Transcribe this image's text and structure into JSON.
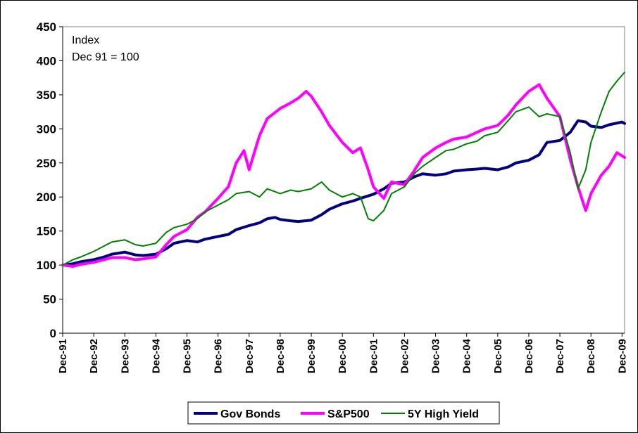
{
  "chart_data": {
    "type": "line",
    "title": "",
    "xlabel": "",
    "ylabel": "",
    "annotation": [
      "Index",
      "Dec 91 = 100"
    ],
    "ylim": [
      0,
      450
    ],
    "yticks": [
      0,
      50,
      100,
      150,
      200,
      250,
      300,
      350,
      400,
      450
    ],
    "xlim": [
      1991.917,
      2010.0
    ],
    "xticks": [
      {
        "label": "Dec-91",
        "x": 1991.917
      },
      {
        "label": "Dec-92",
        "x": 1992.917
      },
      {
        "label": "Dec-93",
        "x": 1993.917
      },
      {
        "label": "Dec-94",
        "x": 1994.917
      },
      {
        "label": "Dec-95",
        "x": 1995.917
      },
      {
        "label": "Dec-96",
        "x": 1996.917
      },
      {
        "label": "Dec-97",
        "x": 1997.917
      },
      {
        "label": "Dec-98",
        "x": 1998.917
      },
      {
        "label": "Dec-99",
        "x": 1999.917
      },
      {
        "label": "Dec-00",
        "x": 2000.917
      },
      {
        "label": "Dec-01",
        "x": 2001.917
      },
      {
        "label": "Dec-02",
        "x": 2002.917
      },
      {
        "label": "Dec-03",
        "x": 2003.917
      },
      {
        "label": "Dec-04",
        "x": 2004.917
      },
      {
        "label": "Dec-05",
        "x": 2005.917
      },
      {
        "label": "Dec-06",
        "x": 2006.917
      },
      {
        "label": "Dec-07",
        "x": 2007.917
      },
      {
        "label": "Dec-08",
        "x": 2008.917
      },
      {
        "label": "Dec-09",
        "x": 2009.917
      }
    ],
    "grid": false,
    "legend": "bottom",
    "series": [
      {
        "name": "Gov Bonds",
        "color": "#000080",
        "points": [
          [
            1991.917,
            100
          ],
          [
            1992.25,
            102
          ],
          [
            1992.5,
            105
          ],
          [
            1992.917,
            108
          ],
          [
            1993.25,
            112
          ],
          [
            1993.5,
            116
          ],
          [
            1993.917,
            119
          ],
          [
            1994.25,
            115
          ],
          [
            1994.5,
            114
          ],
          [
            1994.917,
            116
          ],
          [
            1995.25,
            124
          ],
          [
            1995.5,
            132
          ],
          [
            1995.917,
            136
          ],
          [
            1996.25,
            134
          ],
          [
            1996.5,
            138
          ],
          [
            1996.917,
            142
          ],
          [
            1997.25,
            145
          ],
          [
            1997.5,
            152
          ],
          [
            1997.917,
            158
          ],
          [
            1998.25,
            162
          ],
          [
            1998.5,
            168
          ],
          [
            1998.75,
            170
          ],
          [
            1998.917,
            167
          ],
          [
            1999.25,
            165
          ],
          [
            1999.5,
            164
          ],
          [
            1999.917,
            166
          ],
          [
            2000.25,
            174
          ],
          [
            2000.5,
            182
          ],
          [
            2000.917,
            190
          ],
          [
            2001.25,
            194
          ],
          [
            2001.5,
            198
          ],
          [
            2001.917,
            204
          ],
          [
            2002.25,
            212
          ],
          [
            2002.5,
            220
          ],
          [
            2002.917,
            222
          ],
          [
            2003.25,
            230
          ],
          [
            2003.5,
            234
          ],
          [
            2003.917,
            232
          ],
          [
            2004.25,
            234
          ],
          [
            2004.5,
            238
          ],
          [
            2004.917,
            240
          ],
          [
            2005.25,
            241
          ],
          [
            2005.5,
            242
          ],
          [
            2005.917,
            240
          ],
          [
            2006.25,
            244
          ],
          [
            2006.5,
            250
          ],
          [
            2006.917,
            254
          ],
          [
            2007.25,
            262
          ],
          [
            2007.5,
            280
          ],
          [
            2007.917,
            283
          ],
          [
            2008.25,
            295
          ],
          [
            2008.5,
            312
          ],
          [
            2008.75,
            310
          ],
          [
            2008.917,
            304
          ],
          [
            2009.25,
            302
          ],
          [
            2009.5,
            306
          ],
          [
            2009.917,
            310
          ],
          [
            2010.0,
            308
          ]
        ]
      },
      {
        "name": "S&P500",
        "color": "#ff00ff",
        "points": [
          [
            1991.917,
            100
          ],
          [
            1992.25,
            98
          ],
          [
            1992.5,
            101
          ],
          [
            1992.917,
            104
          ],
          [
            1993.25,
            108
          ],
          [
            1993.5,
            111
          ],
          [
            1993.917,
            111
          ],
          [
            1994.25,
            108
          ],
          [
            1994.5,
            109
          ],
          [
            1994.917,
            112
          ],
          [
            1995.25,
            130
          ],
          [
            1995.5,
            142
          ],
          [
            1995.917,
            152
          ],
          [
            1996.25,
            170
          ],
          [
            1996.5,
            178
          ],
          [
            1996.917,
            198
          ],
          [
            1997.25,
            215
          ],
          [
            1997.5,
            250
          ],
          [
            1997.75,
            268
          ],
          [
            1997.917,
            240
          ],
          [
            1998.25,
            290
          ],
          [
            1998.5,
            315
          ],
          [
            1998.917,
            330
          ],
          [
            1999.25,
            338
          ],
          [
            1999.5,
            345
          ],
          [
            1999.75,
            355
          ],
          [
            1999.917,
            348
          ],
          [
            2000.25,
            325
          ],
          [
            2000.5,
            305
          ],
          [
            2000.917,
            280
          ],
          [
            2001.25,
            265
          ],
          [
            2001.5,
            272
          ],
          [
            2001.75,
            240
          ],
          [
            2001.917,
            215
          ],
          [
            2002.25,
            198
          ],
          [
            2002.5,
            222
          ],
          [
            2002.917,
            218
          ],
          [
            2003.25,
            240
          ],
          [
            2003.5,
            258
          ],
          [
            2003.917,
            272
          ],
          [
            2004.25,
            280
          ],
          [
            2004.5,
            285
          ],
          [
            2004.917,
            288
          ],
          [
            2005.25,
            295
          ],
          [
            2005.5,
            300
          ],
          [
            2005.917,
            305
          ],
          [
            2006.25,
            320
          ],
          [
            2006.5,
            335
          ],
          [
            2006.917,
            355
          ],
          [
            2007.25,
            365
          ],
          [
            2007.5,
            345
          ],
          [
            2007.917,
            318
          ],
          [
            2008.25,
            255
          ],
          [
            2008.5,
            215
          ],
          [
            2008.75,
            180
          ],
          [
            2008.917,
            205
          ],
          [
            2009.25,
            232
          ],
          [
            2009.5,
            245
          ],
          [
            2009.75,
            265
          ],
          [
            2010.0,
            258
          ]
        ]
      },
      {
        "name": "5Y High Yield",
        "color": "#008000",
        "points": [
          [
            1991.917,
            100
          ],
          [
            1992.25,
            108
          ],
          [
            1992.5,
            112
          ],
          [
            1992.917,
            120
          ],
          [
            1993.25,
            128
          ],
          [
            1993.5,
            134
          ],
          [
            1993.917,
            137
          ],
          [
            1994.25,
            130
          ],
          [
            1994.5,
            128
          ],
          [
            1994.917,
            132
          ],
          [
            1995.25,
            148
          ],
          [
            1995.5,
            155
          ],
          [
            1995.917,
            160
          ],
          [
            1996.25,
            168
          ],
          [
            1996.5,
            178
          ],
          [
            1996.917,
            188
          ],
          [
            1997.25,
            196
          ],
          [
            1997.5,
            205
          ],
          [
            1997.917,
            208
          ],
          [
            1998.25,
            200
          ],
          [
            1998.5,
            212
          ],
          [
            1998.917,
            205
          ],
          [
            1999.25,
            210
          ],
          [
            1999.5,
            208
          ],
          [
            1999.917,
            212
          ],
          [
            2000.25,
            222
          ],
          [
            2000.5,
            210
          ],
          [
            2000.917,
            200
          ],
          [
            2001.25,
            205
          ],
          [
            2001.5,
            200
          ],
          [
            2001.75,
            168
          ],
          [
            2001.917,
            165
          ],
          [
            2002.25,
            180
          ],
          [
            2002.5,
            205
          ],
          [
            2002.917,
            215
          ],
          [
            2003.25,
            235
          ],
          [
            2003.5,
            245
          ],
          [
            2003.917,
            258
          ],
          [
            2004.25,
            268
          ],
          [
            2004.5,
            270
          ],
          [
            2004.917,
            278
          ],
          [
            2005.25,
            282
          ],
          [
            2005.5,
            290
          ],
          [
            2005.917,
            295
          ],
          [
            2006.25,
            312
          ],
          [
            2006.5,
            325
          ],
          [
            2006.917,
            332
          ],
          [
            2007.25,
            318
          ],
          [
            2007.5,
            322
          ],
          [
            2007.917,
            318
          ],
          [
            2008.25,
            265
          ],
          [
            2008.5,
            212
          ],
          [
            2008.75,
            240
          ],
          [
            2008.917,
            280
          ],
          [
            2009.25,
            325
          ],
          [
            2009.5,
            355
          ],
          [
            2009.75,
            370
          ],
          [
            2010.0,
            383
          ]
        ]
      }
    ]
  }
}
